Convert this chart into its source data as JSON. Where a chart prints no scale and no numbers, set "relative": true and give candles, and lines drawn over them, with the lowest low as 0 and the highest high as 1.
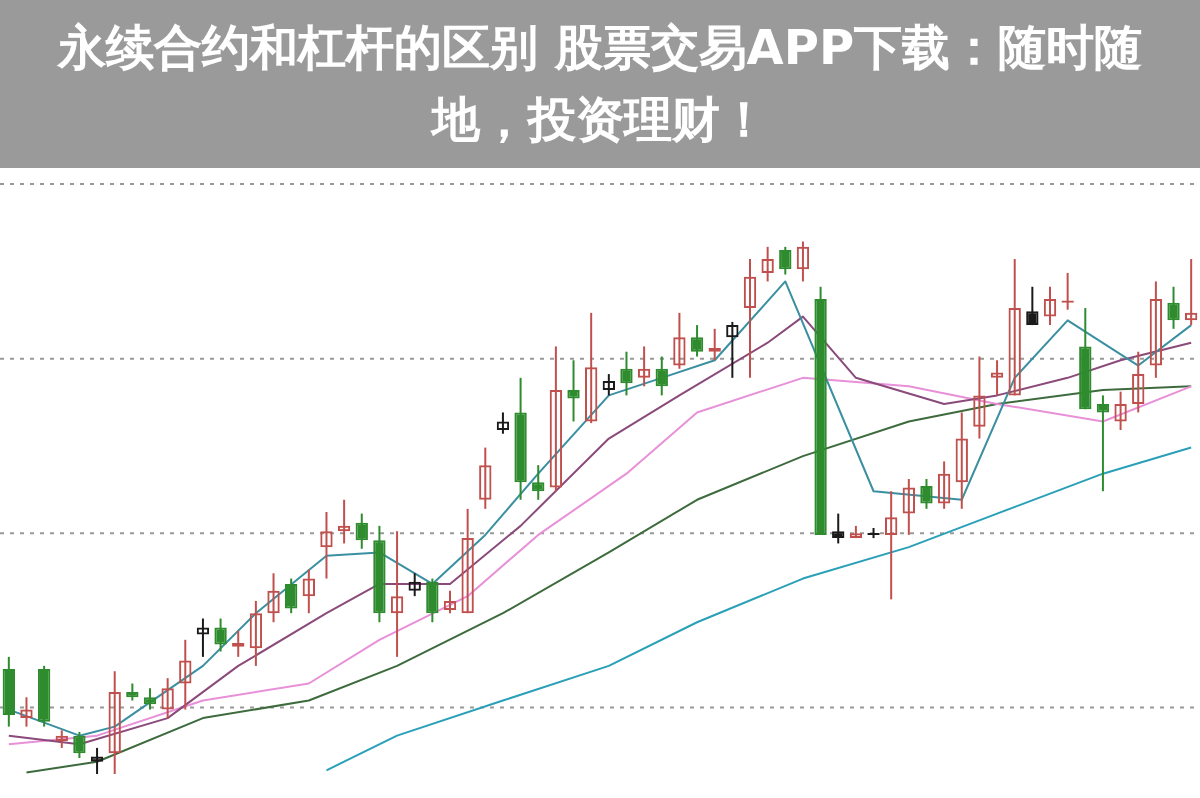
{
  "chart_data": {
    "type": "candlestick",
    "title": "永续合约和杠杆的区别 股票交易APP下载：随时随地，投资理财！",
    "relative": true,
    "legend": false,
    "categories": [
      null,
      null,
      null,
      null,
      null,
      null,
      null,
      null,
      null,
      null,
      null,
      null,
      null,
      null,
      null,
      null,
      null,
      null,
      null,
      null,
      null,
      null,
      null,
      null,
      null,
      null,
      null,
      null,
      null,
      null,
      null,
      null,
      null,
      null,
      null,
      null,
      null,
      null,
      null,
      null,
      null,
      null,
      null,
      null,
      null,
      null,
      null,
      null,
      null,
      null,
      null,
      null,
      null,
      null,
      null,
      null,
      null,
      null,
      null,
      null,
      null,
      null,
      null,
      null,
      null,
      null,
      null,
      null
    ],
    "ohlc": [
      [
        0.197,
        0.22,
        0.089,
        0.111
      ],
      [
        0.105,
        0.144,
        0.089,
        0.121
      ],
      [
        0.197,
        0.203,
        0.089,
        0.098
      ],
      [
        0.062,
        0.082,
        0.049,
        0.072
      ],
      [
        0.072,
        0.079,
        0.03,
        0.039
      ],
      [
        0.033,
        0.049,
        0,
        0.023
      ],
      [
        0.039,
        0.193,
        0,
        0.154
      ],
      [
        0.154,
        0.17,
        0.138,
        0.144
      ],
      [
        0.144,
        0.161,
        0.121,
        0.131
      ],
      [
        0.121,
        0.18,
        0.105,
        0.161
      ],
      [
        0.17,
        0.252,
        0.121,
        0.213
      ],
      [
        0.262,
        0.292,
        0.22,
        0.275
      ],
      [
        0.275,
        0.292,
        0.23,
        0.243
      ],
      [
        0.239,
        0.269,
        0.22,
        0.246
      ],
      [
        0.236,
        0.325,
        0.203,
        0.302
      ],
      [
        0.302,
        0.377,
        0.285,
        0.344
      ],
      [
        0.357,
        0.367,
        0.302,
        0.311
      ],
      [
        0.334,
        0.384,
        0.302,
        0.367
      ],
      [
        0.426,
        0.492,
        0.367,
        0.456
      ],
      [
        0.456,
        0.515,
        0.433,
        0.466
      ],
      [
        0.472,
        0.489,
        0.423,
        0.439
      ],
      [
        0.439,
        0.466,
        0.285,
        0.302
      ],
      [
        0.302,
        0.456,
        0.22,
        0.334
      ],
      [
        0.344,
        0.377,
        0.334,
        0.361
      ],
      [
        0.361,
        0.367,
        0.285,
        0.302
      ],
      [
        0.308,
        0.344,
        0.302,
        0.325
      ],
      [
        0.302,
        0.498,
        0.302,
        0.443
      ],
      [
        0.515,
        0.613,
        0.498,
        0.58
      ],
      [
        0.646,
        0.679,
        0.639,
        0.662
      ],
      [
        0.679,
        0.744,
        0.515,
        0.548
      ],
      [
        0.548,
        0.58,
        0.515,
        0.531
      ],
      [
        0.538,
        0.803,
        0.531,
        0.721
      ],
      [
        0.721,
        0.777,
        0.662,
        0.705
      ],
      [
        0.662,
        0.866,
        0.659,
        0.764
      ],
      [
        0.721,
        0.751,
        0.711,
        0.738
      ],
      [
        0.761,
        0.793,
        0.711,
        0.734
      ],
      [
        0.744,
        0.803,
        0.728,
        0.761
      ],
      [
        0.761,
        0.784,
        0.711,
        0.728
      ],
      [
        0.767,
        0.866,
        0.761,
        0.82
      ],
      [
        0.82,
        0.843,
        0.784,
        0.793
      ],
      [
        0.793,
        0.836,
        0.777,
        0.8
      ],
      [
        0.82,
        0.849,
        0.744,
        0.843
      ],
      [
        0.875,
        0.967,
        0.744,
        0.934
      ],
      [
        0.941,
        0.99,
        0.925,
        0.967
      ],
      [
        0.984,
        0.99,
        0.938,
        0.948
      ],
      [
        0.948,
        1,
        0.925,
        0.99
      ],
      [
        0.892,
        0.915,
        0.449,
        0.449
      ],
      [
        0.456,
        0.489,
        0.433,
        0.443
      ],
      [
        0.443,
        0.466,
        0.443,
        0.452
      ],
      [
        0.452,
        0.462,
        0.443,
        0.449
      ],
      [
        0.449,
        0.531,
        0.328,
        0.482
      ],
      [
        0.489,
        0.554,
        0.449,
        0.538
      ],
      [
        0.541,
        0.554,
        0.498,
        0.508
      ],
      [
        0.508,
        0.587,
        0.498,
        0.564
      ],
      [
        0.548,
        0.679,
        0.498,
        0.63
      ],
      [
        0.652,
        0.784,
        0.63,
        0.711
      ],
      [
        0.744,
        0.777,
        0.711,
        0.754
      ],
      [
        0.711,
        0.967,
        0.711,
        0.875
      ],
      [
        0.869,
        0.915,
        0.843,
        0.843
      ],
      [
        0.859,
        0.915,
        0.843,
        0.892
      ],
      [
        0.885,
        0.941,
        0.872,
        0.889
      ],
      [
        0.803,
        0.875,
        0.685,
        0.685
      ],
      [
        0.695,
        0.711,
        0.531,
        0.679
      ],
      [
        0.662,
        0.718,
        0.646,
        0.695
      ],
      [
        0.695,
        0.793,
        0.679,
        0.751
      ],
      [
        0.767,
        0.925,
        0.744,
        0.892
      ],
      [
        0.885,
        0.915,
        0.836,
        0.852
      ],
      [
        0.852,
        0.967,
        0.843,
        0.866
      ]
    ],
    "colors": [
      "#2e8b2e",
      "#c0504d",
      "#2e8b2e",
      "#c0504d",
      "#2e8b2e",
      "#1a1a1a",
      "#c0504d",
      "#2e8b2e",
      "#2e8b2e",
      "#c0504d",
      "#c0504d",
      "#1a1a1a",
      "#2e8b2e",
      "#c0504d",
      "#c0504d",
      "#c0504d",
      "#2e8b2e",
      "#c0504d",
      "#c0504d",
      "#c0504d",
      "#2e8b2e",
      "#2e8b2e",
      "#c0504d",
      "#1a1a1a",
      "#2e8b2e",
      "#c0504d",
      "#c0504d",
      "#c0504d",
      "#1a1a1a",
      "#2e8b2e",
      "#2e8b2e",
      "#c0504d",
      "#2e8b2e",
      "#c0504d",
      "#1a1a1a",
      "#2e8b2e",
      "#c0504d",
      "#2e8b2e",
      "#c0504d",
      "#2e8b2e",
      "#c0504d",
      "#1a1a1a",
      "#c0504d",
      "#c0504d",
      "#2e8b2e",
      "#c0504d",
      "#2e8b2e",
      "#1a1a1a",
      "#c0504d",
      "#1a1a1a",
      "#c0504d",
      "#c0504d",
      "#2e8b2e",
      "#c0504d",
      "#c0504d",
      "#c0504d",
      "#c0504d",
      "#c0504d",
      "#1a1a1a",
      "#c0504d",
      "#c0504d",
      "#2e8b2e",
      "#2e8b2e",
      "#c0504d",
      "#c0504d",
      "#c0504d",
      "#2e8b2e",
      "#c0504d"
    ],
    "series": [
      {
        "type": "line",
        "color": "#3a8fa0",
        "values": [
          0.121,
          null,
          null,
          null,
          0.072,
          null,
          0.089,
          null,
          null,
          null,
          null,
          0.203,
          null,
          null,
          0.302,
          null,
          null,
          null,
          0.41,
          null,
          null,
          0.416,
          null,
          null,
          0.357,
          null,
          null,
          0.449,
          null,
          null,
          0.564,
          null,
          null,
          null,
          0.711,
          null,
          null,
          0.744,
          null,
          null,
          0.777,
          null,
          null,
          null,
          0.925,
          null,
          null,
          null,
          null,
          0.531,
          null,
          null,
          null,
          null,
          0.515,
          null,
          null,
          0.744,
          null,
          null,
          0.852,
          null,
          null,
          null,
          0.767,
          null,
          null,
          0.843
        ]
      },
      {
        "type": "line",
        "color": "#8a4a7a",
        "values": [
          0.072,
          null,
          null,
          null,
          0.056,
          null,
          null,
          null,
          null,
          0.105,
          null,
          null,
          null,
          0.203,
          null,
          null,
          null,
          null,
          0.302,
          null,
          null,
          0.357,
          null,
          null,
          null,
          0.357,
          null,
          null,
          null,
          0.466,
          null,
          null,
          null,
          null,
          0.63,
          null,
          null,
          null,
          0.711,
          null,
          null,
          null,
          null,
          0.81,
          null,
          0.859,
          null,
          null,
          0.744,
          null,
          null,
          null,
          null,
          0.695,
          null,
          null,
          0.711,
          null,
          null,
          null,
          0.744,
          null,
          null,
          0.777,
          null,
          null,
          null,
          0.81
        ]
      },
      {
        "type": "line",
        "color": "#e890d8",
        "values": [
          0.056,
          null,
          null,
          null,
          null,
          0.072,
          null,
          null,
          null,
          null,
          null,
          0.138,
          null,
          null,
          null,
          null,
          null,
          0.17,
          null,
          null,
          null,
          0.252,
          null,
          null,
          null,
          null,
          0.334,
          null,
          null,
          null,
          0.449,
          null,
          null,
          null,
          null,
          0.564,
          null,
          null,
          null,
          0.679,
          null,
          null,
          null,
          null,
          null,
          0.744,
          null,
          null,
          null,
          null,
          null,
          0.728,
          null,
          null,
          null,
          null,
          0.695,
          null,
          null,
          null,
          null,
          null,
          0.662,
          null,
          null,
          null,
          null,
          0.728
        ]
      },
      {
        "type": "line",
        "color": "#3d6b3d",
        "values": [
          null,
          0.003,
          null,
          null,
          null,
          0.023,
          null,
          null,
          null,
          null,
          null,
          0.105,
          null,
          null,
          null,
          null,
          null,
          0.138,
          null,
          null,
          null,
          null,
          0.203,
          null,
          null,
          null,
          null,
          null,
          0.302,
          null,
          null,
          null,
          null,
          null,
          0.416,
          null,
          null,
          null,
          null,
          0.515,
          null,
          null,
          null,
          null,
          null,
          0.597,
          null,
          null,
          null,
          null,
          null,
          0.662,
          null,
          null,
          null,
          null,
          0.695,
          null,
          null,
          null,
          null,
          null,
          0.721,
          null,
          null,
          null,
          null,
          0.728
        ]
      },
      {
        "type": "line",
        "color": "#2aa0b8",
        "values": [
          null,
          null,
          null,
          null,
          null,
          null,
          null,
          null,
          null,
          null,
          null,
          null,
          null,
          null,
          null,
          null,
          null,
          null,
          0.007,
          null,
          null,
          null,
          0.072,
          null,
          null,
          null,
          null,
          null,
          0.138,
          null,
          null,
          null,
          null,
          null,
          0.203,
          null,
          null,
          null,
          null,
          0.285,
          null,
          null,
          null,
          null,
          null,
          0.367,
          null,
          null,
          null,
          null,
          null,
          0.426,
          null,
          null,
          null,
          null,
          0.489,
          null,
          null,
          null,
          null,
          null,
          0.564,
          null,
          null,
          null,
          null,
          0.613
        ]
      }
    ],
    "ref_lines": [
      {
        "axis": "y",
        "value": 1.108,
        "color": "#999999",
        "line_style": "dotted"
      },
      {
        "axis": "y",
        "value": 0.78,
        "color": "#999999",
        "line_style": "dotted"
      },
      {
        "axis": "y",
        "value": 0.452,
        "color": "#999999",
        "line_style": "dotted"
      },
      {
        "axis": "y",
        "value": 0.125,
        "color": "#999999",
        "line_style": "dotted"
      }
    ]
  }
}
